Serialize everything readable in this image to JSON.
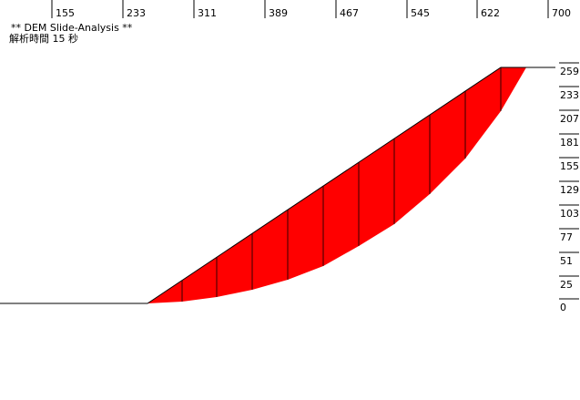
{
  "chart_data": {
    "type": "slope",
    "title": "** DEM Slide-Analysis **",
    "subtitle": "解析時間 15 秒",
    "xlim": [
      98,
      735
    ],
    "ylim": [
      -106,
      333
    ],
    "xticks": [
      155,
      233,
      311,
      389,
      467,
      545,
      622,
      700
    ],
    "yticks": [
      0,
      25,
      51,
      77,
      103,
      129,
      155,
      181,
      207,
      233,
      259
    ],
    "surface": {
      "x": [
        98,
        260,
        648,
        708
      ],
      "y": [
        0,
        0,
        259,
        259
      ],
      "color": "#000000"
    },
    "slip": {
      "x": [
        260,
        298,
        336,
        375,
        414,
        453,
        492,
        531,
        570,
        609,
        648,
        676
      ],
      "y": [
        0,
        2,
        7,
        15,
        26,
        41,
        63,
        87,
        120,
        159,
        211,
        259
      ],
      "color": "#ff0000"
    }
  }
}
